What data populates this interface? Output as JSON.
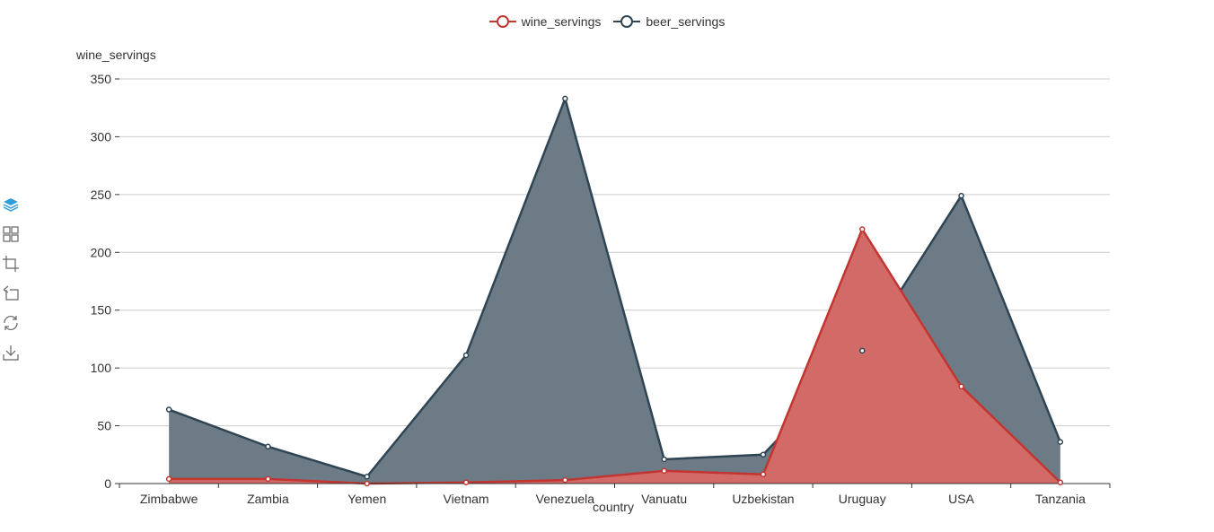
{
  "legend": {
    "items": [
      {
        "label": "wine_servings",
        "color": "#c23531"
      },
      {
        "label": "beer_servings",
        "color": "#2f4554"
      }
    ]
  },
  "toolbox": {
    "icons": [
      "stack-icon",
      "tiled-icon",
      "crop-icon",
      "restore-crop-icon",
      "refresh-icon",
      "download-icon"
    ],
    "active_color": "#2f9ed8",
    "inactive_color": "#666666"
  },
  "chart_data": {
    "type": "area",
    "xlabel": "country",
    "ylabel": "wine_servings",
    "ylim": [
      0,
      350
    ],
    "yticks": [
      0,
      50,
      100,
      150,
      200,
      250,
      300,
      350
    ],
    "grid": true,
    "legend_position": "top-center",
    "categories": [
      "Zimbabwe",
      "Zambia",
      "Yemen",
      "Vietnam",
      "Venezuela",
      "Vanuatu",
      "Uzbekistan",
      "Uruguay",
      "USA",
      "Tanzania"
    ],
    "series": [
      {
        "name": "wine_servings",
        "color": "#c23531",
        "fill": "#d26a68",
        "values": [
          4,
          4,
          0,
          1,
          3,
          11,
          8,
          220,
          84,
          1
        ]
      },
      {
        "name": "beer_servings",
        "color": "#2f4554",
        "fill": "#6d7b87",
        "values": [
          64,
          32,
          6,
          111,
          333,
          21,
          25,
          115,
          249,
          36
        ]
      }
    ]
  }
}
